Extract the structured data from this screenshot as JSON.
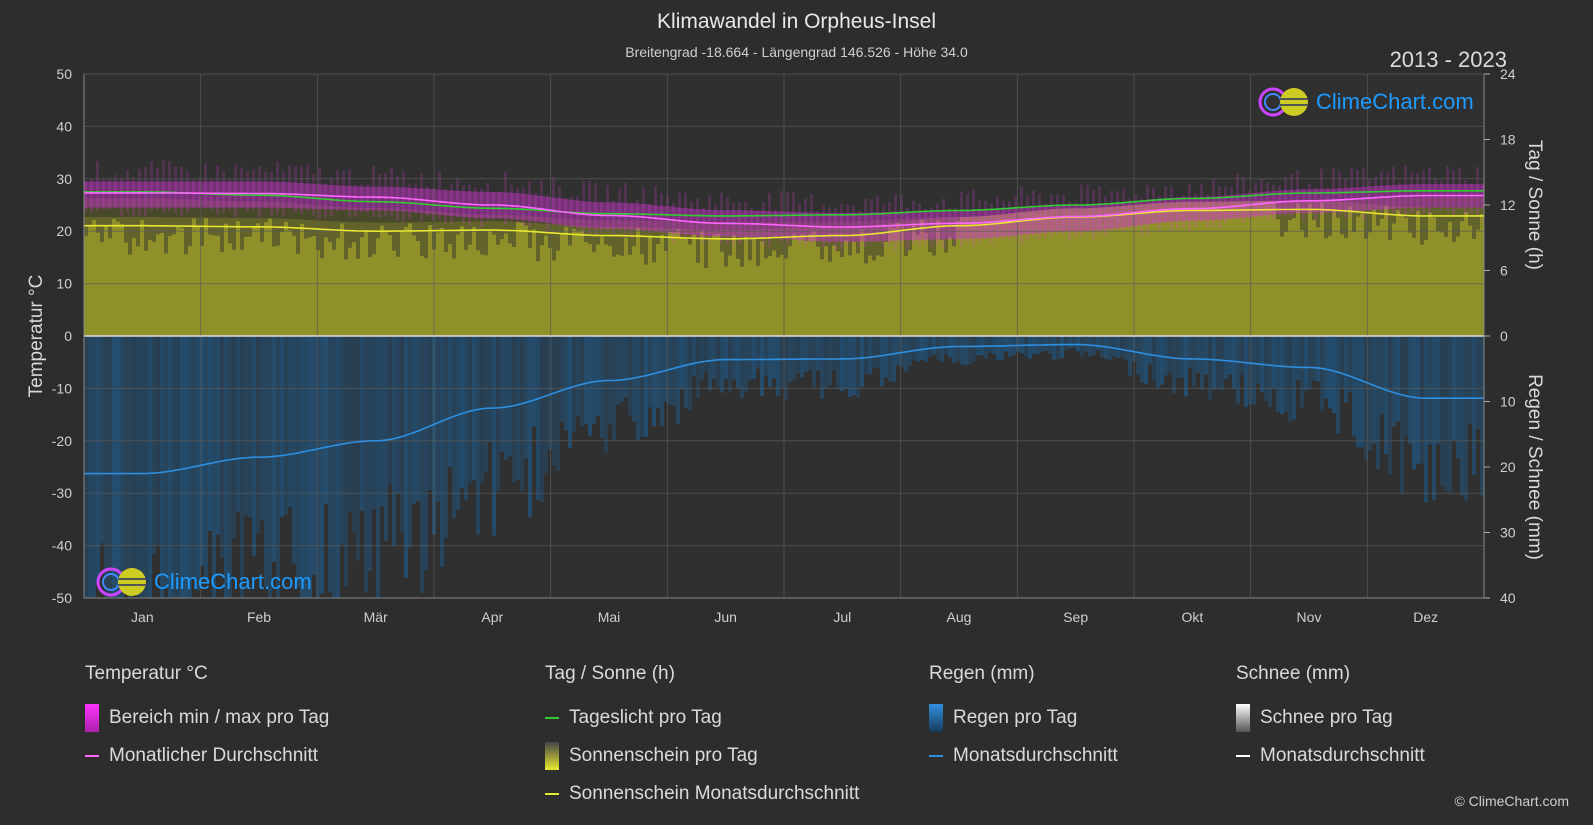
{
  "header": {
    "title": "Klimawandel in Orpheus-Insel",
    "subtitle": "Breitengrad -18.664 - Längengrad 146.526 - Höhe 34.0",
    "years": "2013 - 2023"
  },
  "logo": {
    "text": "ClimeChart.com"
  },
  "copyright": "© ClimeChart.com",
  "chart_data": {
    "type": "line",
    "categories": [
      "Jan",
      "Feb",
      "Mär",
      "Apr",
      "Mai",
      "Jun",
      "Jul",
      "Aug",
      "Sep",
      "Okt",
      "Nov",
      "Dez"
    ],
    "axes": {
      "left": {
        "label": "Temperatur °C",
        "min": -50,
        "max": 50,
        "ticks": [
          50,
          40,
          30,
          20,
          10,
          0,
          -10,
          -20,
          -30,
          -40,
          -50
        ]
      },
      "right_top": {
        "label": "Tag / Sonne (h)",
        "min": 0,
        "max": 24,
        "ticks": [
          24,
          18,
          12,
          6,
          0
        ]
      },
      "right_bottom": {
        "label": "Regen / Schnee (mm)",
        "min": 0,
        "max": 40,
        "ticks": [
          0,
          10,
          20,
          30,
          40
        ]
      }
    },
    "series": [
      {
        "name": "Tageslicht pro Tag",
        "unit": "h",
        "color": "#33cc33",
        "values": [
          13.2,
          12.9,
          12.3,
          11.7,
          11.2,
          11.0,
          11.1,
          11.5,
          12.0,
          12.6,
          13.1,
          13.3
        ]
      },
      {
        "name": "Sonnenschein Monatsdurchschnitt",
        "unit": "h",
        "color": "#e8e830",
        "values": [
          10.1,
          10.0,
          9.6,
          9.7,
          9.2,
          8.9,
          9.2,
          10.1,
          10.9,
          11.5,
          11.6,
          11.0
        ]
      },
      {
        "name": "Monatlicher Durchschnitt",
        "unit": "°C",
        "color": "#ff66ff",
        "values": [
          27.3,
          27.2,
          26.5,
          25.0,
          23.0,
          21.5,
          20.8,
          21.5,
          22.8,
          24.3,
          25.8,
          26.8
        ]
      },
      {
        "name": "Regen Monatsdurchschnitt",
        "unit": "mm",
        "color": "#2e8fe0",
        "values": [
          21.0,
          18.5,
          16.0,
          11.0,
          6.8,
          3.6,
          3.5,
          1.6,
          1.3,
          3.5,
          4.8,
          9.5
        ]
      }
    ],
    "temperature_range": {
      "min": [
        24.5,
        24.5,
        24.0,
        22.5,
        20.5,
        19.0,
        18.0,
        18.5,
        20.0,
        22.0,
        23.5,
        24.5
      ],
      "max": [
        29.5,
        29.5,
        28.5,
        27.5,
        25.5,
        24.0,
        23.5,
        24.0,
        25.0,
        26.5,
        28.0,
        29.0
      ]
    }
  },
  "legend": {
    "temperature": {
      "title": "Temperatur °C",
      "items": [
        "Bereich min / max pro Tag",
        "Monatlicher Durchschnitt"
      ]
    },
    "sun": {
      "title": "Tag / Sonne (h)",
      "items": [
        "Tageslicht pro Tag",
        "Sonnenschein pro Tag",
        "Sonnenschein Monatsdurchschnitt"
      ]
    },
    "rain": {
      "title": "Regen (mm)",
      "items": [
        "Regen pro Tag",
        "Monatsdurchschnitt"
      ]
    },
    "snow": {
      "title": "Schnee (mm)",
      "items": [
        "Schnee pro Tag",
        "Monatsdurchschnitt"
      ]
    }
  },
  "colors": {
    "background": "#2d2d2d",
    "grid": "#5a5a5a",
    "temp_range": "#cc33cc",
    "sunshine_fill": "#9a9a2a",
    "rain_fill": "#1e5a8a",
    "snow_fill": "#ffffff"
  }
}
